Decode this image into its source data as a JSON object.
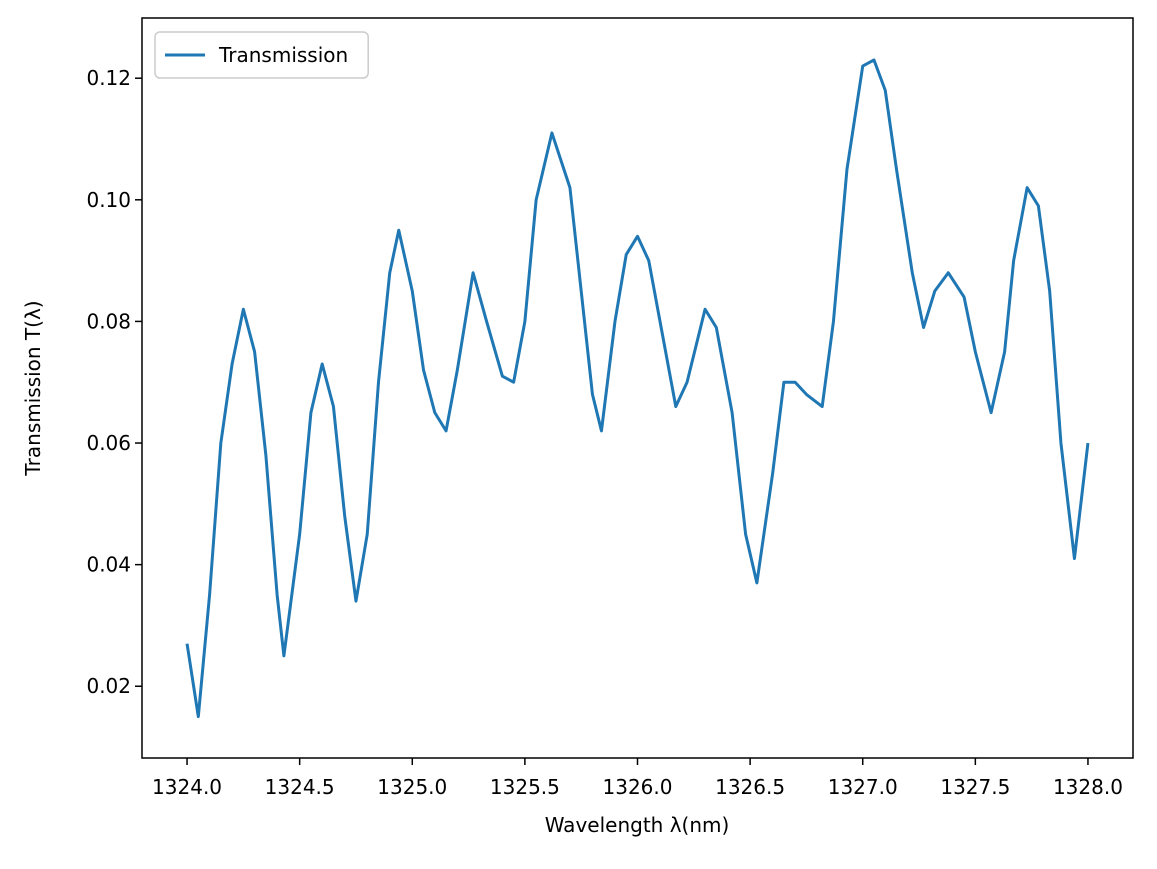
{
  "chart_data": {
    "type": "line",
    "xlabel": "Wavelength λ(nm)",
    "ylabel": "Transmission T(λ)",
    "legend": "upper left",
    "xlim": [
      1323.8,
      1328.2
    ],
    "xticks": [
      {
        "value": 1324,
        "label": "1324.0"
      },
      {
        "value": 1324.5,
        "label": "1324.5"
      },
      {
        "value": 1325,
        "label": "1325.0"
      },
      {
        "value": 1325.5,
        "label": "1325.5"
      },
      {
        "value": 1326,
        "label": "1326.0"
      },
      {
        "value": 1326.5,
        "label": "1326.5"
      },
      {
        "value": 1327,
        "label": "1327.0"
      },
      {
        "value": 1327.5,
        "label": "1327.5"
      },
      {
        "value": 1328,
        "label": "1328.0"
      }
    ],
    "ylim": [
      0.0082,
      0.1299
    ],
    "yticks": [
      0.02,
      0.04,
      0.06,
      0.08,
      {
        "value": 0.1,
        "label": "0.10"
      },
      0.12
    ],
    "x": [
      1324.0,
      1324.05,
      1324.1,
      1324.15,
      1324.2,
      1324.25,
      1324.3,
      1324.35,
      1324.4,
      1324.43,
      1324.5,
      1324.55,
      1324.6,
      1324.65,
      1324.7,
      1324.75,
      1324.8,
      1324.85,
      1324.9,
      1324.94,
      1325.0,
      1325.05,
      1325.1,
      1325.15,
      1325.2,
      1325.27,
      1325.33,
      1325.4,
      1325.45,
      1325.5,
      1325.55,
      1325.62,
      1325.7,
      1325.75,
      1325.8,
      1325.84,
      1325.9,
      1325.95,
      1326.0,
      1326.05,
      1326.1,
      1326.17,
      1326.22,
      1326.3,
      1326.35,
      1326.42,
      1326.48,
      1326.53,
      1326.6,
      1326.65,
      1326.7,
      1326.75,
      1326.82,
      1326.87,
      1326.93,
      1327.0,
      1327.05,
      1327.1,
      1327.15,
      1327.22,
      1327.27,
      1327.32,
      1327.38,
      1327.45,
      1327.5,
      1327.57,
      1327.63,
      1327.67,
      1327.73,
      1327.78,
      1327.83,
      1327.88,
      1327.94,
      1328.0
    ],
    "series": [
      {
        "name": "Transmission",
        "color": "#1f77b4",
        "values": [
          0.027,
          0.015,
          0.035,
          0.06,
          0.073,
          0.082,
          0.075,
          0.058,
          0.035,
          0.025,
          0.045,
          0.065,
          0.073,
          0.066,
          0.048,
          0.034,
          0.045,
          0.07,
          0.088,
          0.095,
          0.085,
          0.072,
          0.065,
          0.062,
          0.072,
          0.088,
          0.08,
          0.071,
          0.07,
          0.08,
          0.1,
          0.111,
          0.102,
          0.085,
          0.068,
          0.062,
          0.08,
          0.091,
          0.094,
          0.09,
          0.08,
          0.066,
          0.07,
          0.082,
          0.079,
          0.065,
          0.045,
          0.037,
          0.055,
          0.07,
          0.07,
          0.068,
          0.066,
          0.08,
          0.105,
          0.122,
          0.123,
          0.118,
          0.105,
          0.088,
          0.079,
          0.085,
          0.088,
          0.084,
          0.075,
          0.065,
          0.075,
          0.09,
          0.102,
          0.099,
          0.085,
          0.06,
          0.041,
          0.06
        ]
      }
    ]
  }
}
